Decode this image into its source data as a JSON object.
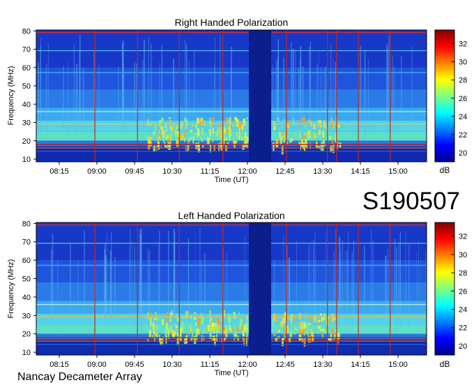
{
  "figure": {
    "id_label": "S190507",
    "footer": "Nancay Decameter Array"
  },
  "chart_data": [
    {
      "type": "heatmap",
      "title": "Right Handed Polarization",
      "xlabel": "Time (UT)",
      "ylabel": "Frequency (MHz)",
      "x_ticks": [
        "08:15",
        "09:00",
        "09:45",
        "10:30",
        "11:15",
        "12:00",
        "12:45",
        "13:30",
        "14:15",
        "15:00"
      ],
      "y_ticks": [
        10,
        20,
        30,
        40,
        50,
        60,
        70,
        80
      ],
      "ylim": [
        10,
        80
      ],
      "colorbar": {
        "label": "dB",
        "ticks": [
          20,
          22,
          24,
          26,
          28,
          30,
          32
        ],
        "range": [
          19,
          33.5
        ]
      },
      "data_gap": [
        "12:00",
        "12:30"
      ]
    },
    {
      "type": "heatmap",
      "title": "Left Handed Polarization",
      "xlabel": "Time (UT)",
      "ylabel": "Frequency (MHz)",
      "x_ticks": [
        "08:15",
        "09:00",
        "09:45",
        "10:30",
        "11:15",
        "12:00",
        "12:45",
        "13:30",
        "14:15",
        "15:00"
      ],
      "y_ticks": [
        10,
        20,
        30,
        40,
        50,
        60,
        70,
        80
      ],
      "ylim": [
        10,
        80
      ],
      "colorbar": {
        "label": "dB",
        "ticks": [
          20,
          22,
          24,
          26,
          28,
          30,
          32
        ],
        "range": [
          19,
          33.5
        ]
      },
      "data_gap": [
        "12:00",
        "12:30"
      ]
    }
  ]
}
